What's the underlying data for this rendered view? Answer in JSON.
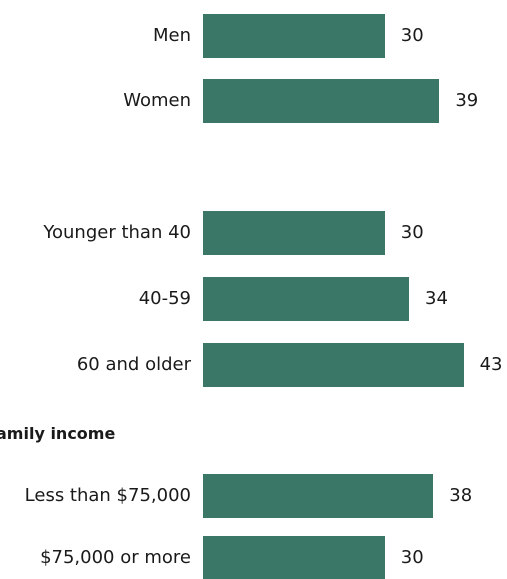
{
  "bar_color": "#3b7767",
  "chart_data": {
    "type": "bar",
    "orientation": "horizontal",
    "groups": [
      {
        "header": "",
        "categories": [
          "Men",
          "Women"
        ],
        "values": [
          30,
          39
        ]
      },
      {
        "header": "",
        "categories": [
          "Younger than 40",
          "40-59",
          "60 and older"
        ],
        "values": [
          30,
          34,
          43
        ]
      },
      {
        "header": "amily income",
        "categories": [
          "Less than $75,000",
          "$75,000 or more"
        ],
        "values": [
          38,
          30
        ]
      }
    ],
    "data_labels": true,
    "grid": false,
    "legend": "none"
  }
}
